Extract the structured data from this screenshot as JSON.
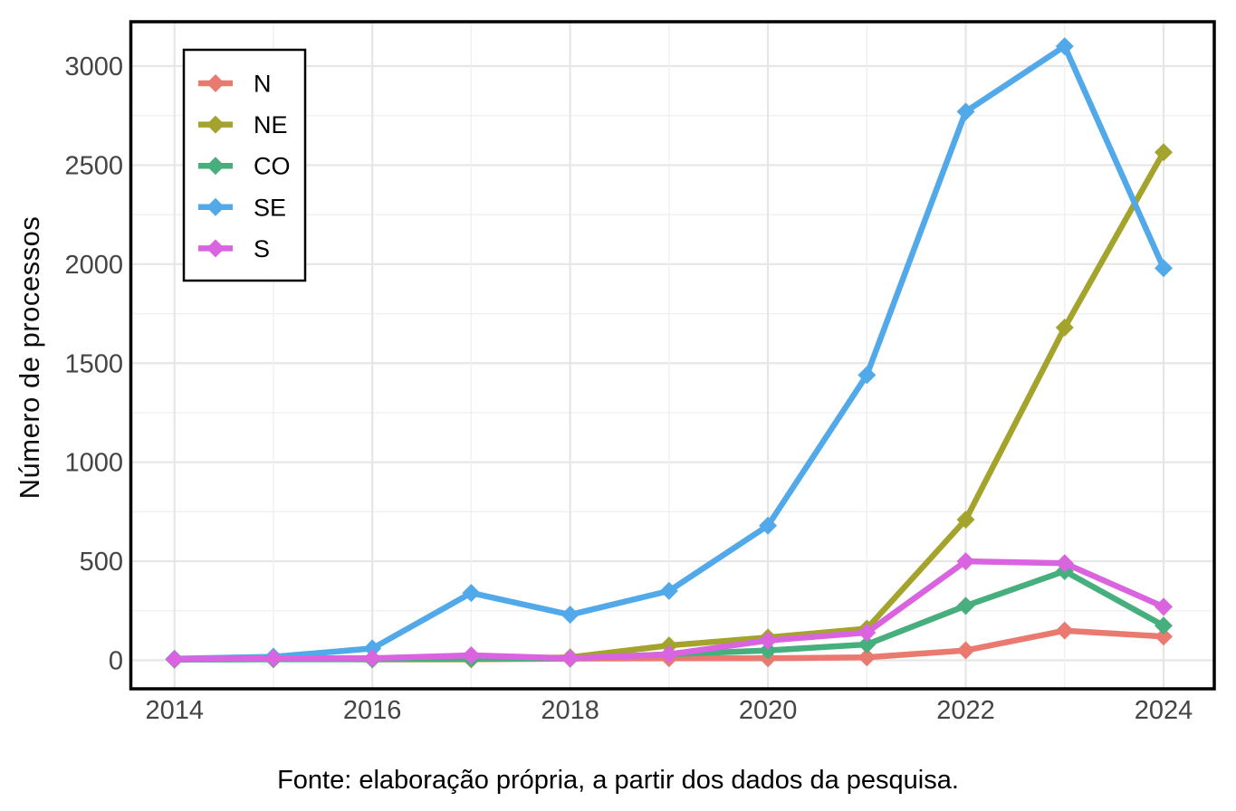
{
  "figure": {
    "caption": "Fonte: elaboração própria, a partir dos dados da pesquisa."
  },
  "colors": {
    "background": "#FFFFFF",
    "panel_border": "#000000",
    "grid_major": "#E6E6E6",
    "grid_minor": "#F0F0F0",
    "tick_text": "#444444",
    "legend_border": "#000000",
    "legend_background": "#FFFFFF",
    "legend_text": "#000000"
  },
  "chart_data": {
    "type": "line",
    "title": "",
    "xlabel": "",
    "ylabel": "Número de processos",
    "x": [
      2014,
      2015,
      2016,
      2017,
      2018,
      2019,
      2020,
      2021,
      2022,
      2023,
      2024
    ],
    "x_ticks": [
      2014,
      2016,
      2018,
      2020,
      2022,
      2024
    ],
    "x_minor_gridlines": [
      2015,
      2017,
      2019,
      2021,
      2023
    ],
    "y_ticks": [
      0,
      500,
      1000,
      1500,
      2000,
      2500,
      3000
    ],
    "y_minor_gridlines": [
      250,
      750,
      1250,
      1750,
      2250,
      2750
    ],
    "ylim": [
      0,
      3100
    ],
    "grid": true,
    "legend_position": "top-left-inside",
    "legend_labels": [
      "N",
      "NE",
      "CO",
      "SE",
      "S"
    ],
    "series": [
      {
        "name": "N",
        "color": "#EA7A6F",
        "values": [
          5,
          8,
          5,
          5,
          8,
          10,
          10,
          15,
          50,
          150,
          120
        ]
      },
      {
        "name": "NE",
        "color": "#A4A42C",
        "values": [
          5,
          8,
          5,
          5,
          15,
          75,
          115,
          160,
          710,
          1680,
          2565
        ]
      },
      {
        "name": "CO",
        "color": "#47AF7E",
        "values": [
          3,
          5,
          5,
          8,
          10,
          30,
          50,
          80,
          275,
          450,
          175
        ]
      },
      {
        "name": "SE",
        "color": "#52A9EA",
        "values": [
          8,
          18,
          60,
          340,
          230,
          350,
          680,
          1440,
          2770,
          3100,
          1980
        ]
      },
      {
        "name": "S",
        "color": "#DA64E0",
        "values": [
          5,
          10,
          10,
          25,
          10,
          30,
          100,
          140,
          500,
          490,
          270
        ]
      }
    ]
  }
}
